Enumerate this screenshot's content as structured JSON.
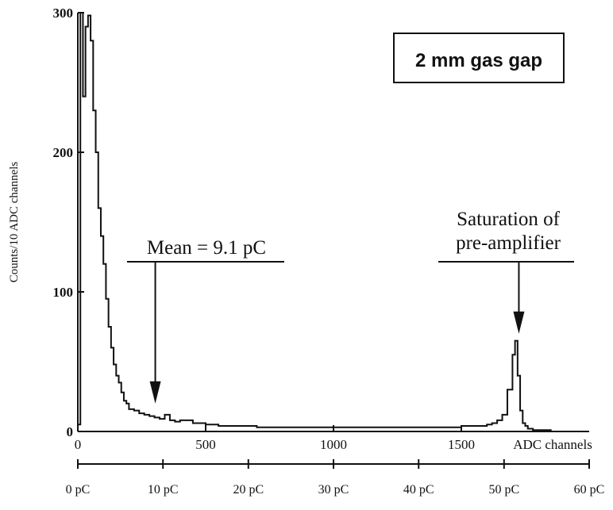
{
  "chart_data": {
    "type": "histogram",
    "ylabel": "Counts/10 ADC channels",
    "xlabel": "ADC channels",
    "xlim": [
      0,
      2000
    ],
    "ylim": [
      0,
      300
    ],
    "y_ticks": [
      0,
      100,
      200,
      300
    ],
    "y_tick_labels": [
      "0",
      "100",
      "200",
      "300"
    ],
    "x_ticks": [
      0,
      500,
      1000,
      1500
    ],
    "x_tick_labels": [
      "0",
      "500",
      "1000",
      "1500"
    ],
    "secondary_axis": {
      "ticks_adc": [
        0,
        333,
        667,
        1000,
        1333,
        1667,
        2000
      ],
      "labels": [
        "0 pC",
        "10 pC",
        "20 pC",
        "30 pC",
        "40 pC",
        "50 pC",
        "60 pC"
      ]
    },
    "box_label": "2 mm gas gap",
    "annotations": [
      {
        "text_lines": [
          "Mean = 9.1 pC"
        ],
        "arrow_x": 303,
        "arrow_y": 20
      },
      {
        "text_lines": [
          "Saturation of",
          "pre-amplifier"
        ],
        "arrow_x": 1725,
        "arrow_y": 70
      }
    ],
    "bins": {
      "x": [
        0,
        10,
        20,
        30,
        40,
        50,
        60,
        70,
        80,
        90,
        100,
        110,
        120,
        130,
        140,
        150,
        160,
        170,
        180,
        190,
        200,
        220,
        240,
        260,
        280,
        300,
        320,
        340,
        360,
        380,
        400,
        450,
        500,
        550,
        600,
        700,
        800,
        900,
        1000,
        1100,
        1200,
        1300,
        1400,
        1500,
        1550,
        1600,
        1620,
        1640,
        1660,
        1680,
        1700,
        1710,
        1720,
        1730,
        1740,
        1750,
        1760,
        1780,
        1800,
        1850,
        1900,
        1950,
        1990
      ],
      "counts": [
        5,
        300,
        240,
        290,
        298,
        280,
        230,
        200,
        160,
        140,
        120,
        95,
        75,
        60,
        48,
        40,
        35,
        28,
        22,
        20,
        16,
        15,
        13,
        12,
        11,
        10,
        9,
        12,
        8,
        7,
        8,
        6,
        5,
        4,
        4,
        3,
        3,
        3,
        3,
        3,
        3,
        3,
        3,
        4,
        4,
        5,
        6,
        8,
        12,
        30,
        55,
        65,
        40,
        15,
        6,
        4,
        2,
        1,
        1,
        0,
        0,
        0,
        0
      ]
    }
  }
}
